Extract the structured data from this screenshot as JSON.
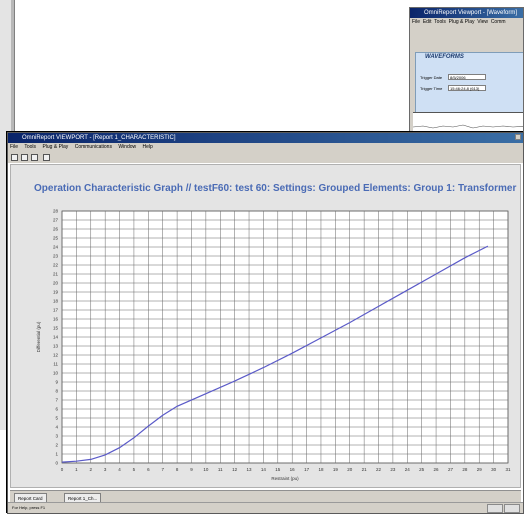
{
  "main_window": {
    "title": "OmniReport VIEWPORT - [Report 1_CHARACTERISTIC]",
    "menu": [
      "File",
      "Tools",
      "Plug & Play",
      "Communications",
      "Window",
      "Help"
    ]
  },
  "right_window": {
    "title": "OmniReport Viewport - [Waveform]",
    "menu": [
      "File",
      "Edit",
      "Tools",
      "Plug & Play",
      "View",
      "Comm"
    ],
    "panel_title": "WAVEFORMS",
    "trigger_date_label": "Trigger Date",
    "trigger_date_value": "8/5/2006",
    "trigger_time_label": "Trigger Time",
    "trigger_time_value": "15:46:24.8 (613)"
  },
  "tabs": [
    "Report Card",
    "Report 1_Ch..."
  ],
  "status_text": "For Help, press F1",
  "chart_data": {
    "type": "line",
    "title": "Operation Characteristic Graph // testF60: test 60: Settings: Grouped Elements: Group 1: Transformer",
    "xlabel": "Restraint (pu)",
    "ylabel": "Differential (pu)",
    "xlim": [
      0,
      31
    ],
    "ylim": [
      0,
      28
    ],
    "xticks": [
      "0",
      "1",
      "2",
      "3",
      "4",
      "5",
      "6",
      "7",
      "8",
      "9",
      "10",
      "11",
      "12",
      "13",
      "14",
      "15",
      "16",
      "17",
      "18",
      "19",
      "20",
      "21",
      "22",
      "23",
      "24",
      "25",
      "26",
      "27",
      "28",
      "29",
      "30",
      "31"
    ],
    "yticks": [
      "0",
      "1",
      "2",
      "3",
      "4",
      "5",
      "6",
      "7",
      "8",
      "9",
      "10",
      "11",
      "12",
      "13",
      "14",
      "15",
      "16",
      "17",
      "18",
      "19",
      "20",
      "21",
      "22",
      "23",
      "24",
      "25",
      "26",
      "27",
      "28"
    ],
    "grid": true,
    "color": "#5a5ac8",
    "series": [
      {
        "x": [
          0,
          1,
          2,
          3,
          4,
          5,
          6,
          7,
          8,
          10,
          12,
          14,
          16,
          18,
          20,
          22,
          24,
          26,
          28,
          29.6
        ],
        "y": [
          0.1,
          0.2,
          0.4,
          0.9,
          1.7,
          2.8,
          4.1,
          5.3,
          6.3,
          7.7,
          9.1,
          10.6,
          12.2,
          13.9,
          15.6,
          17.4,
          19.2,
          21.0,
          22.8,
          24.1
        ]
      }
    ]
  }
}
